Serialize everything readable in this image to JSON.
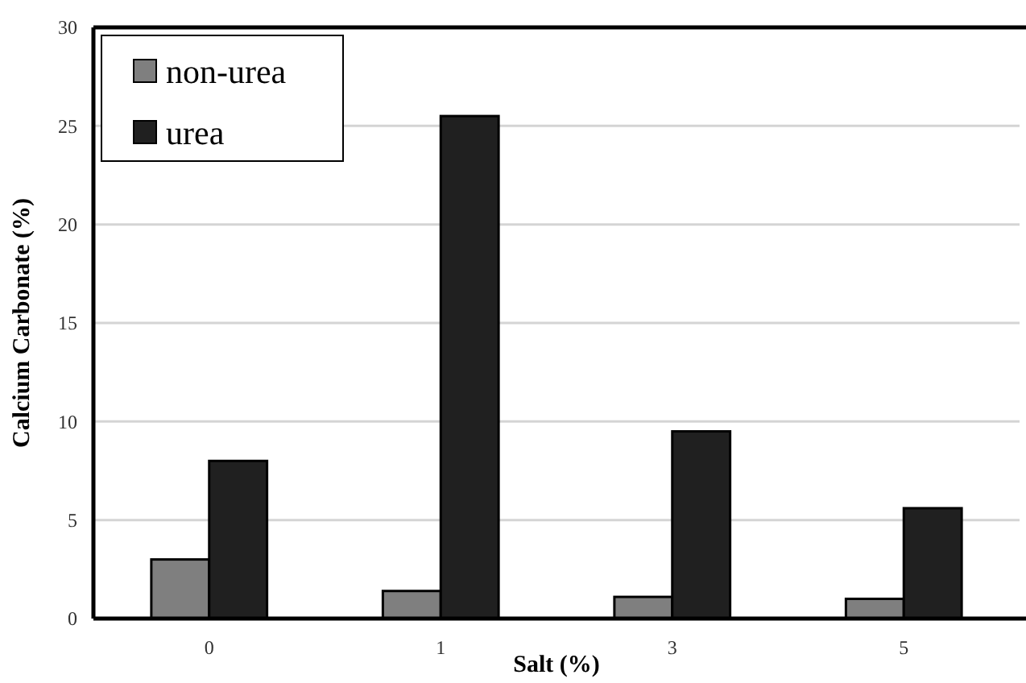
{
  "chart_data": {
    "type": "bar",
    "xlabel": "Salt (%)",
    "ylabel": "Calcium Carbonate (%)",
    "categories": [
      "0",
      "1",
      "3",
      "5"
    ],
    "series": [
      {
        "name": "non-urea",
        "color": "#7f7f7f",
        "values": [
          3.0,
          1.4,
          1.1,
          1.0
        ]
      },
      {
        "name": "urea",
        "color": "#202020",
        "values": [
          8.0,
          25.5,
          9.5,
          5.6
        ]
      }
    ],
    "ylim": [
      0,
      30
    ],
    "yticks": [
      0,
      5,
      10,
      15,
      20,
      25,
      30
    ],
    "grid": "y",
    "legend": "top left"
  }
}
